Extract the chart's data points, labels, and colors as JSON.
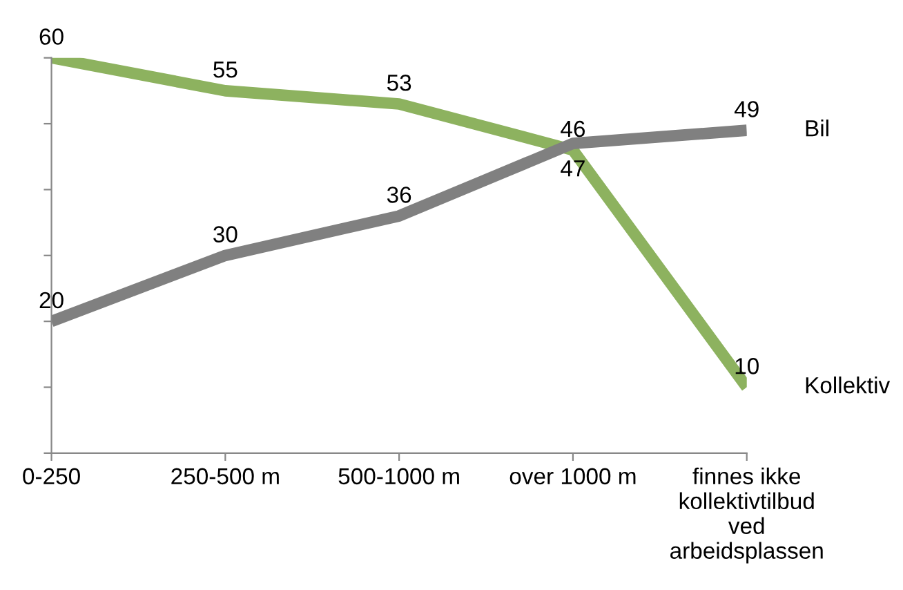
{
  "chart_data": {
    "type": "line",
    "categories": [
      "0-250",
      "250-500 m",
      "500-1000 m",
      "over 1000 m",
      "finnes ikke\nkollektivtilbud\nved\narbeidsplassen"
    ],
    "series": [
      {
        "name": "Kollektiv",
        "color": "#8db25f",
        "values": [
          60,
          55,
          53,
          46,
          10
        ]
      },
      {
        "name": "Bil",
        "color": "#808080",
        "values": [
          20,
          30,
          36,
          47,
          49
        ]
      }
    ],
    "ylim": [
      0,
      60
    ],
    "yticks": [
      {
        "value": 0,
        "label": null
      },
      {
        "value": 10,
        "label": null
      },
      {
        "value": 20,
        "label": null
      },
      {
        "value": 30,
        "label": null
      },
      {
        "value": 40,
        "label": null
      },
      {
        "value": 50,
        "label": null
      },
      {
        "value": 60,
        "label": null
      }
    ],
    "tick_labels": "x",
    "data_labels": true,
    "grid": false,
    "legend": false,
    "marker": "none",
    "line_style": "solid"
  }
}
